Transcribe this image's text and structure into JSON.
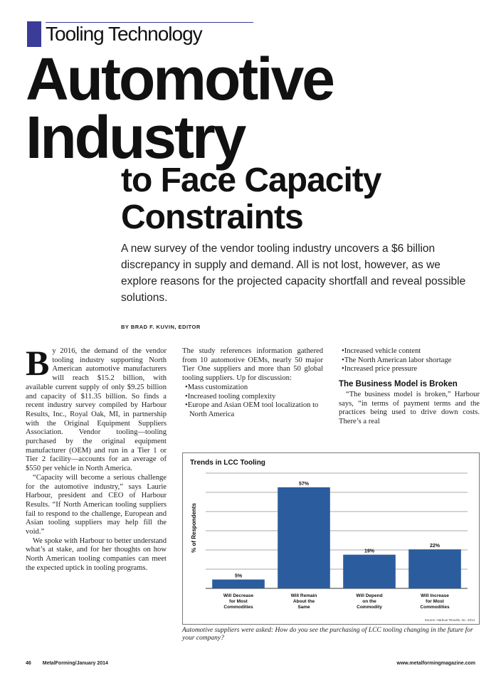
{
  "section": {
    "tag": "Tooling Technology",
    "accent": "#3b3b98"
  },
  "headline": {
    "line1": "Automotive",
    "line2": "Industry",
    "line3": "to Face Capacity",
    "line4": "Constraints"
  },
  "deck": "A new survey of the vendor tooling industry uncovers a $6 billion discrepancy in supply and demand. All is not lost, however, as we explore reasons for the projected capacity shortfall and reveal possible solutions.",
  "byline": "BY BRAD F. KUVIN, EDITOR",
  "body": {
    "col1_dropcap": "B",
    "col1_p1": "y 2016, the demand of the vendor tooling industry supporting North American automotive manufacturers will reach $15.2 billion, with available current supply of only $9.25 billion and capacity of $11.35 billion. So finds a recent industry survey compiled by Harbour Results, Inc., Royal Oak, MI, in partnership with the Original Equipment Suppliers Association. Vendor tooling—tooling purchased by the original equipment manufacturer (OEM) and run in a Tier 1 or Tier 2 facility—accounts for an average of $550 per vehicle in North America.",
    "col1_p2": "“Capacity will become a serious challenge for the automotive industry,” says Laurie Harbour, president and CEO of Harbour Results. “If North American tooling suppliers fail to respond to the challenge, European and Asian tooling suppliers may help fill the void.”",
    "col1_p3": "We spoke with Harbour to better understand what’s at stake, and for her thoughts on how North American tooling companies can meet the expected uptick in tooling programs.",
    "col2_p1": "The study references information gathered from 10 automotive OEMs, nearly 50 major Tier One suppliers and more than 50 global tooling suppliers. Up for discussion:",
    "col2_bullets": [
      "Mass customization",
      "Increased tooling complexity",
      "Europe and Asian OEM tool localization to North America"
    ],
    "col3_bullets": [
      "Increased vehicle content",
      "The North American labor shortage",
      "Increased price pressure"
    ],
    "col3_subhead": "The Business Model is Broken",
    "col3_p1": "“The business model is broken,” Harbour says, “in terms of payment terms and the practices being used to drive down costs. There’s a real"
  },
  "chart_data": {
    "type": "bar",
    "title": "Trends in LCC Tooling",
    "ylabel": "% of Respondents",
    "xlabel": "",
    "categories": [
      "Will Decrease for Most Commodities",
      "Will Remain About the Same",
      "Will Depend on the Commodity",
      "Will Increase for Most Commodities"
    ],
    "category_lines": [
      [
        "Will Decrease",
        "for Most",
        "Commodities"
      ],
      [
        "Will Remain",
        "About the",
        "Same"
      ],
      [
        "Will Depend",
        "on the",
        "Commodity"
      ],
      [
        "Will Increase",
        "for Most",
        "Commodities"
      ]
    ],
    "values": [
      5,
      57,
      19,
      22
    ],
    "value_labels": [
      "5%",
      "57%",
      "19%",
      "22%"
    ],
    "ylim": [
      0,
      65
    ],
    "grid": true,
    "bar_color": "#2b5c9e",
    "source": "Source: Harbour Results, Inc. 2014"
  },
  "caption": "Automotive suppliers were asked: How do you see the purchasing of LCC tooling changing in the future for your company?",
  "footer": {
    "page": "46",
    "publication": "MetalForming/January 2014",
    "url": "www.metalformingmagazine.com"
  }
}
